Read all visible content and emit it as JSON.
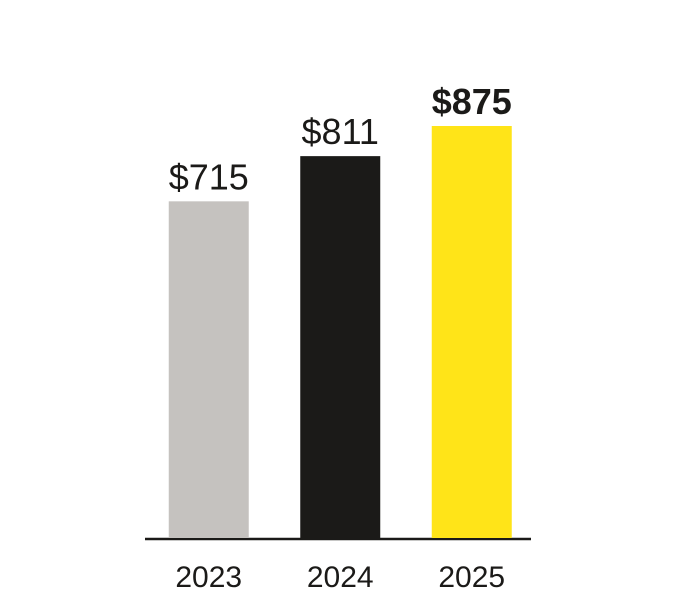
{
  "chart_data": {
    "type": "bar",
    "categories": [
      "2023",
      "2024",
      "2025"
    ],
    "values": [
      715,
      811,
      875
    ],
    "value_labels": [
      "$715",
      "$811",
      "$875"
    ],
    "colors": [
      "#c5c2bf",
      "#1b1a18",
      "#ffe418"
    ]
  }
}
